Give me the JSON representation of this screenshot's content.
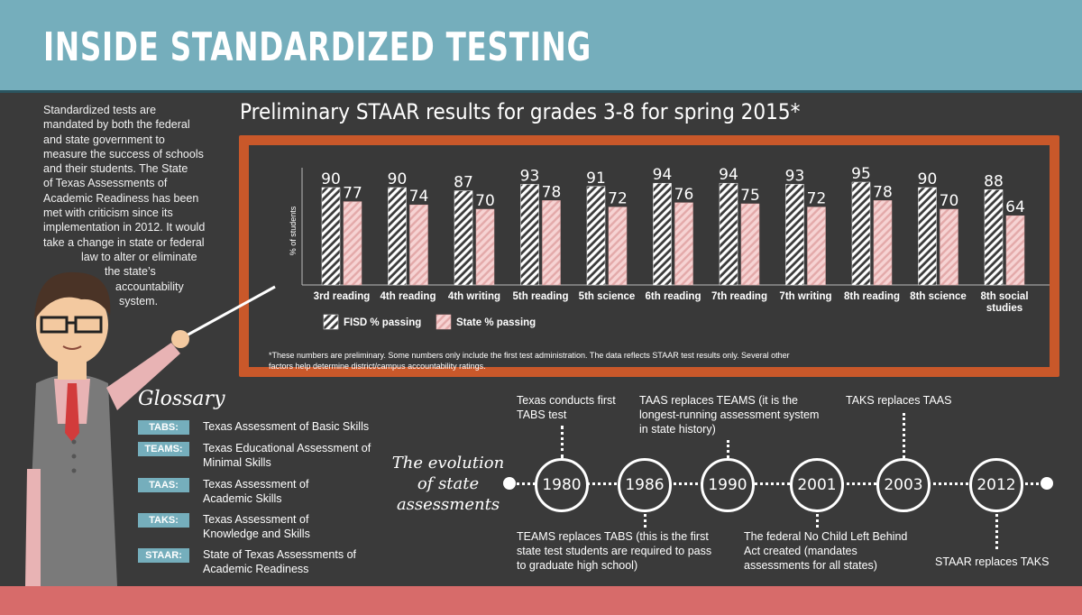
{
  "header": {
    "title": "INSIDE STANDARDIZED TESTING"
  },
  "intro": {
    "lines": [
      "Standardized tests are",
      "mandated by both the federal",
      "and state government to",
      "measure the success of schools",
      "and their students. The State",
      "of Texas Assessments of",
      "Academic Readiness has been",
      "met with criticism since its",
      "implementation in 2012. It would",
      "take a change in state or federal",
      "law to alter or eliminate",
      "the state’s",
      "accountability",
      "system."
    ]
  },
  "chart_data": {
    "type": "bar",
    "title": "Preliminary STAAR results for grades 3-8 for spring 2015*",
    "ylabel": "% of students",
    "xlabel": "",
    "ylim": [
      0,
      100
    ],
    "categories": [
      "3rd reading",
      "4th reading",
      "4th writing",
      "5th reading",
      "5th science",
      "6th reading",
      "7th reading",
      "7th writing",
      "8th reading",
      "8th science",
      "8th social studies"
    ],
    "series": [
      {
        "name": "FISD % passing",
        "values": [
          90,
          90,
          87,
          93,
          91,
          94,
          94,
          93,
          95,
          90,
          88
        ],
        "color": "#ffffff"
      },
      {
        "name": "State % passing",
        "values": [
          77,
          74,
          70,
          78,
          72,
          76,
          75,
          72,
          78,
          70,
          64
        ],
        "color": "#f2c4c4"
      }
    ],
    "legend": "bottom-left",
    "note": "*These numbers are preliminary. Some numbers only include the first test administration. The data reflects STAAR test results only. Several other factors help determine district/campus accountability ratings."
  },
  "glossary": {
    "title": "Glossary",
    "items": [
      {
        "tag": "TABS:",
        "definition": "Texas Assessment of Basic Skills"
      },
      {
        "tag": "TEAMS:",
        "definition": "Texas Educational Assessment of Minimal Skills"
      },
      {
        "tag": "TAAS:",
        "definition": "Texas Assessment of Academic Skills"
      },
      {
        "tag": "TAKS:",
        "definition": "Texas Assessment of Knowledge and Skills"
      },
      {
        "tag": "STAAR:",
        "definition": "State of Texas Assessments of Academic Readiness"
      }
    ]
  },
  "timeline": {
    "title": "The evolution of state assessments",
    "events": [
      {
        "year": "1980",
        "text": "Texas conducts first TABS test"
      },
      {
        "year": "1986",
        "text": "TEAMS replaces TABS (this is the first state test students are required to pass to graduate high school)"
      },
      {
        "year": "1990",
        "text": "TAAS replaces TEAMS (it is the longest-running assessment system in state history)"
      },
      {
        "year": "2001",
        "text": "The federal No Child Left Behind Act created (mandates assessments for all states)"
      },
      {
        "year": "2003",
        "text": "TAKS replaces TAAS"
      },
      {
        "year": "2012",
        "text": "STAAR replaces TAKS"
      }
    ]
  },
  "colors": {
    "banner": "#75aebc",
    "background": "#3a3a3a",
    "board": "#c9582a",
    "footer": "#d76b6a",
    "state_bar": "#f2c4c4"
  }
}
